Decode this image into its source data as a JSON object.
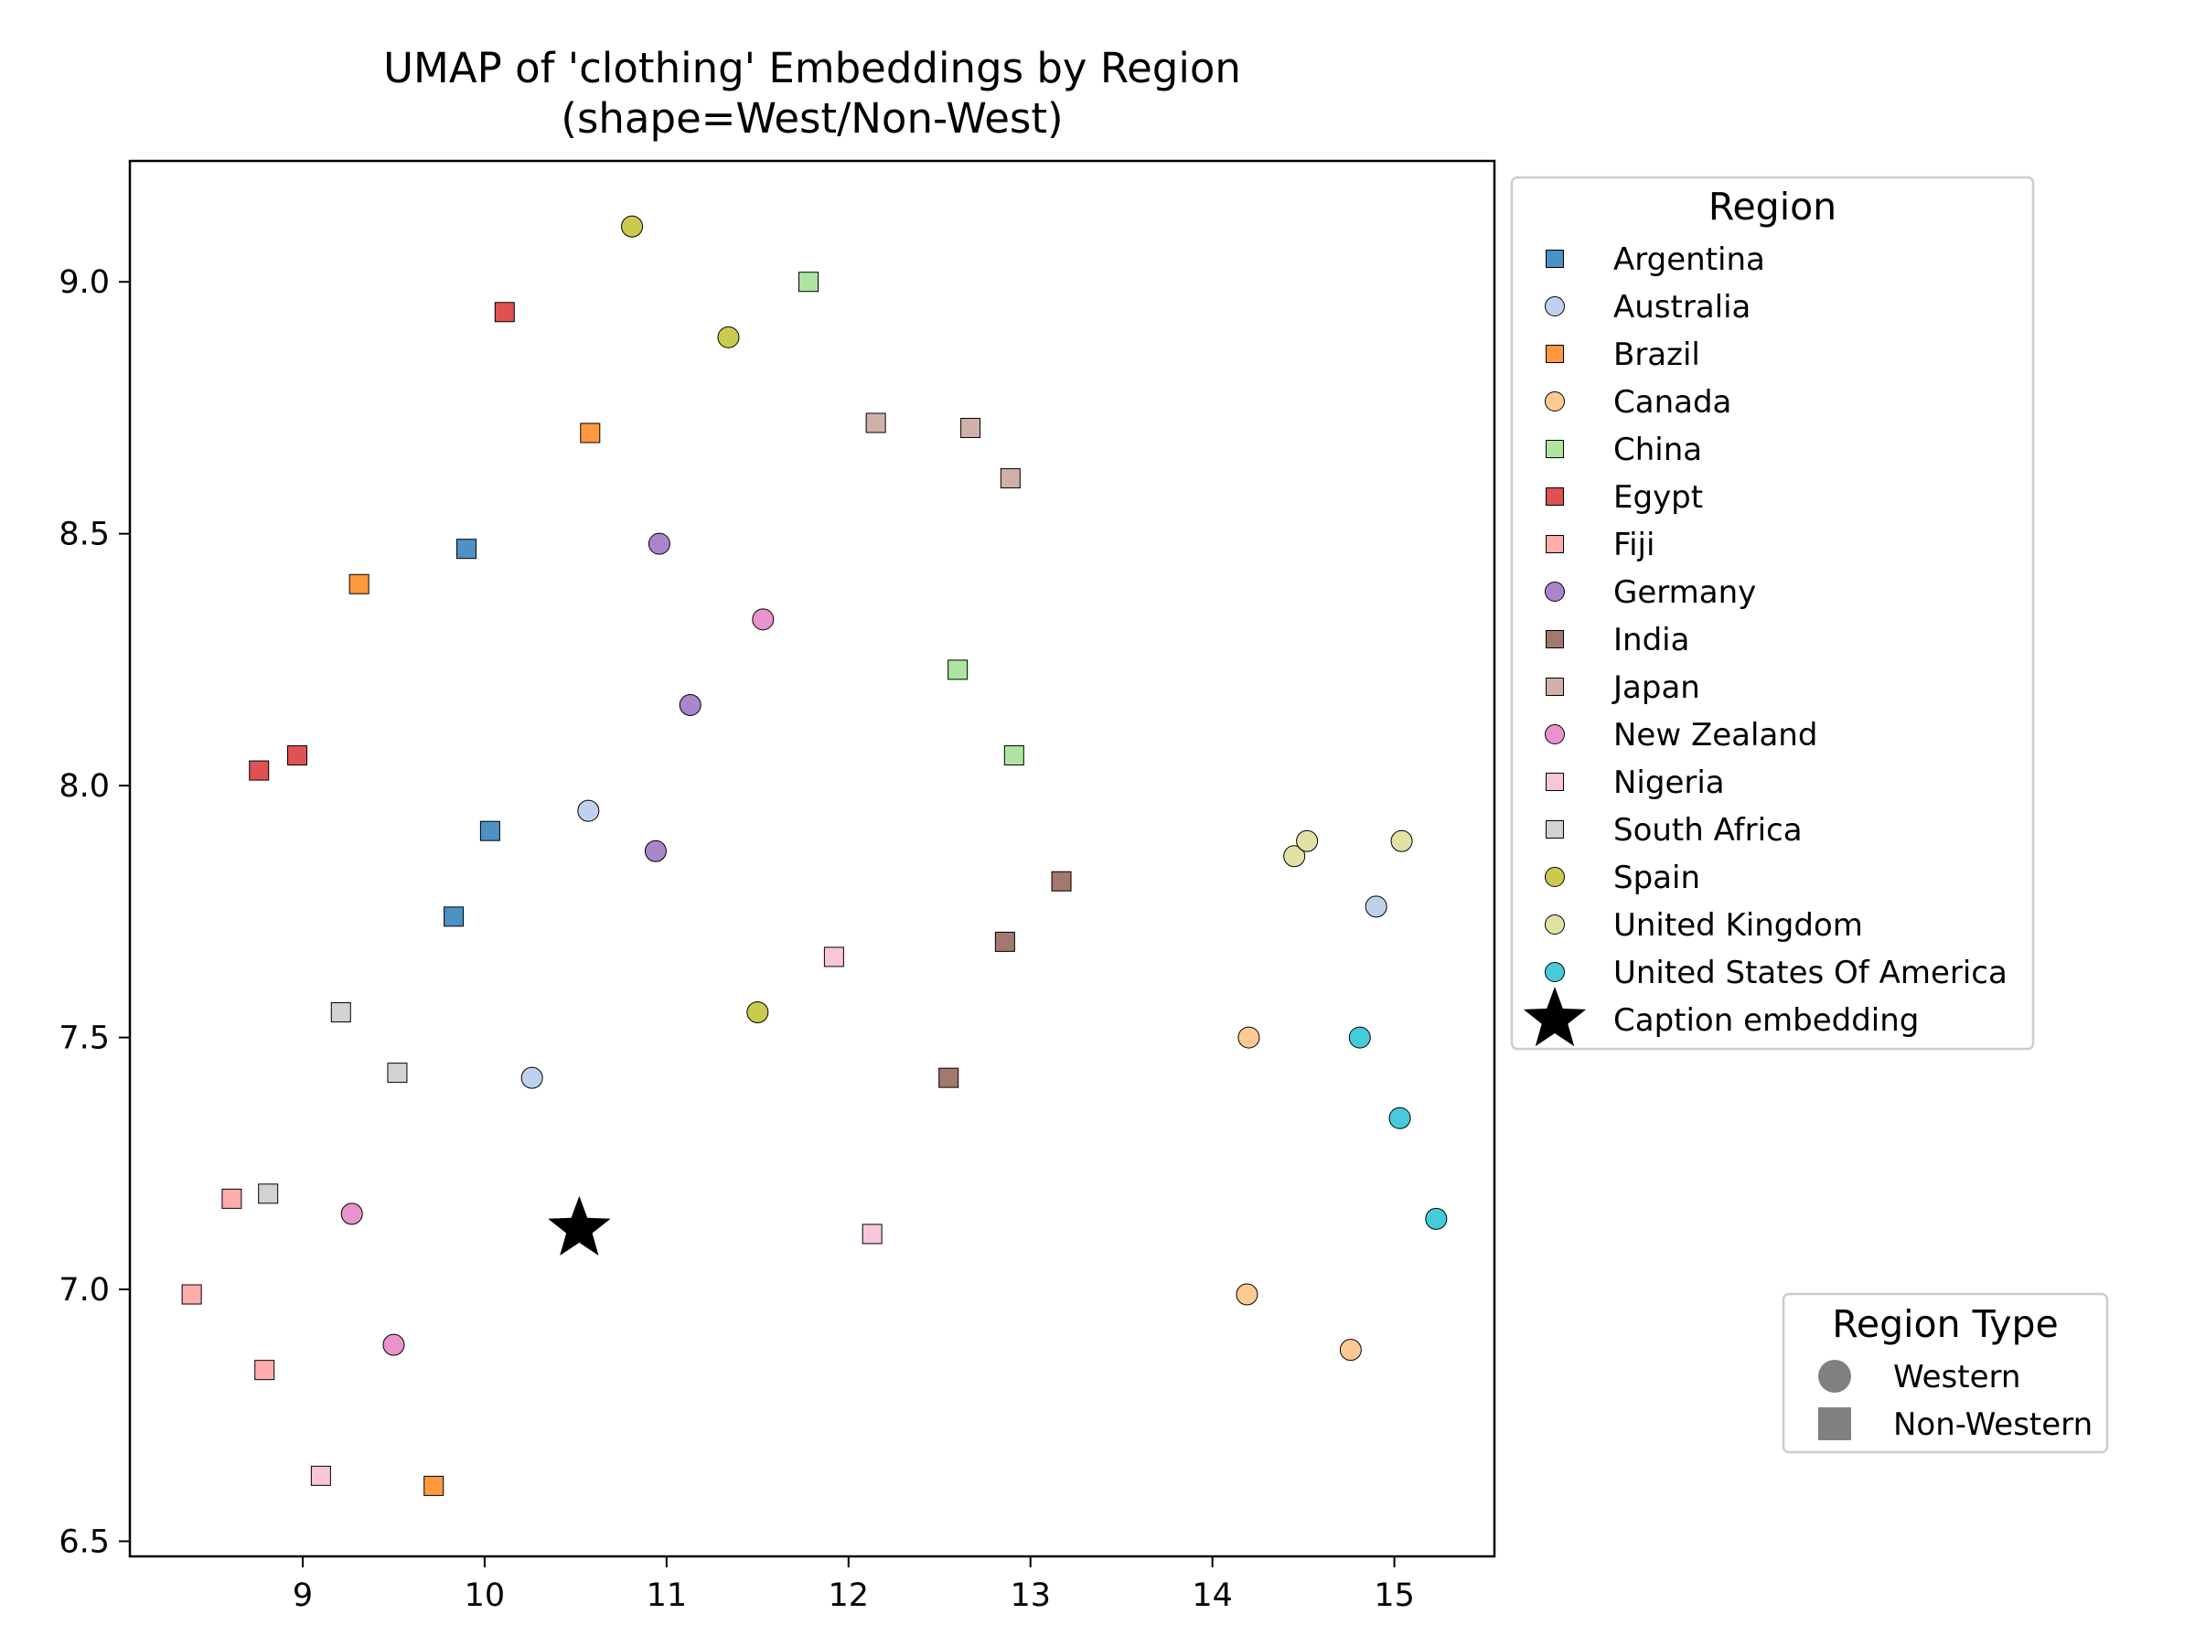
{
  "chart_data": {
    "type": "scatter",
    "title": "UMAP of 'clothing' Embeddings by Region",
    "subtitle": "(shape=West/Non-West)",
    "xlabel": "",
    "ylabel": "",
    "xlim": [
      8.05,
      15.55
    ],
    "ylim": [
      6.47,
      9.24
    ],
    "xticks": [
      9,
      10,
      11,
      12,
      13,
      14,
      15
    ],
    "yticks": [
      6.5,
      7.0,
      7.5,
      8.0,
      8.5,
      9.0
    ],
    "grid": false,
    "legend_region": {
      "title": "Region",
      "placement": "outside-top-right"
    },
    "legend_type": {
      "title": "Region Type",
      "placement": "outside-bottom-right",
      "entries": [
        {
          "label": "Western",
          "shape": "circle",
          "color": "#808080"
        },
        {
          "label": "Non-Western",
          "shape": "square",
          "color": "#808080"
        }
      ]
    },
    "series": [
      {
        "name": "Argentina",
        "color": "#1f77b4",
        "shape": "square",
        "points": [
          [
            9.9,
            8.47
          ],
          [
            10.03,
            7.91
          ],
          [
            9.83,
            7.74
          ]
        ]
      },
      {
        "name": "Australia",
        "color": "#aec7e8",
        "shape": "circle",
        "points": [
          [
            10.57,
            7.95
          ],
          [
            10.26,
            7.42
          ],
          [
            14.9,
            7.76
          ]
        ]
      },
      {
        "name": "Brazil",
        "color": "#ff7f0e",
        "shape": "square",
        "points": [
          [
            10.58,
            8.7
          ],
          [
            9.31,
            8.4
          ],
          [
            9.72,
            6.61
          ]
        ]
      },
      {
        "name": "Canada",
        "color": "#ffbb78",
        "shape": "circle",
        "points": [
          [
            14.2,
            7.5
          ],
          [
            14.19,
            6.99
          ],
          [
            14.76,
            6.88
          ]
        ]
      },
      {
        "name": "China",
        "color": "#98df8a",
        "shape": "square",
        "points": [
          [
            11.78,
            9.0
          ],
          [
            12.6,
            8.23
          ],
          [
            12.91,
            8.06
          ]
        ]
      },
      {
        "name": "Egypt",
        "color": "#d62728",
        "shape": "square",
        "points": [
          [
            10.11,
            8.94
          ],
          [
            8.97,
            8.06
          ],
          [
            8.76,
            8.03
          ]
        ]
      },
      {
        "name": "Fiji",
        "color": "#ff9896",
        "shape": "square",
        "points": [
          [
            8.61,
            7.18
          ],
          [
            8.39,
            6.99
          ],
          [
            8.79,
            6.84
          ]
        ]
      },
      {
        "name": "Germany",
        "color": "#9467bd",
        "shape": "circle",
        "points": [
          [
            10.96,
            8.48
          ],
          [
            11.13,
            8.16
          ],
          [
            10.94,
            7.87
          ]
        ]
      },
      {
        "name": "India",
        "color": "#8c564b",
        "shape": "square",
        "points": [
          [
            13.17,
            7.81
          ],
          [
            12.86,
            7.69
          ],
          [
            12.55,
            7.42
          ]
        ]
      },
      {
        "name": "Japan",
        "color": "#c49c94",
        "shape": "square",
        "points": [
          [
            12.15,
            8.72
          ],
          [
            12.67,
            8.71
          ],
          [
            12.89,
            8.61
          ]
        ]
      },
      {
        "name": "New Zealand",
        "color": "#e377c2",
        "shape": "circle",
        "points": [
          [
            11.53,
            8.33
          ],
          [
            9.27,
            7.15
          ],
          [
            9.5,
            6.89
          ]
        ]
      },
      {
        "name": "Nigeria",
        "color": "#f7b6d2",
        "shape": "square",
        "points": [
          [
            11.92,
            7.66
          ],
          [
            12.13,
            7.11
          ],
          [
            9.1,
            6.63
          ]
        ]
      },
      {
        "name": "South Africa",
        "color": "#c7c7c7",
        "shape": "square",
        "points": [
          [
            9.21,
            7.55
          ],
          [
            9.52,
            7.43
          ],
          [
            8.81,
            7.19
          ]
        ]
      },
      {
        "name": "Spain",
        "color": "#bcbd22",
        "shape": "circle",
        "points": [
          [
            10.81,
            9.11
          ],
          [
            11.34,
            8.89
          ],
          [
            11.5,
            7.55
          ]
        ]
      },
      {
        "name": "United Kingdom",
        "color": "#dbdb8d",
        "shape": "circle",
        "points": [
          [
            14.45,
            7.86
          ],
          [
            14.52,
            7.89
          ],
          [
            15.04,
            7.89
          ]
        ]
      },
      {
        "name": "United States Of America",
        "color": "#17becf",
        "shape": "circle",
        "points": [
          [
            14.81,
            7.5
          ],
          [
            15.03,
            7.34
          ],
          [
            15.23,
            7.14
          ]
        ]
      },
      {
        "name": "Caption embedding",
        "color": "#000000",
        "shape": "star",
        "points": [
          [
            10.52,
            7.12
          ]
        ]
      }
    ]
  }
}
